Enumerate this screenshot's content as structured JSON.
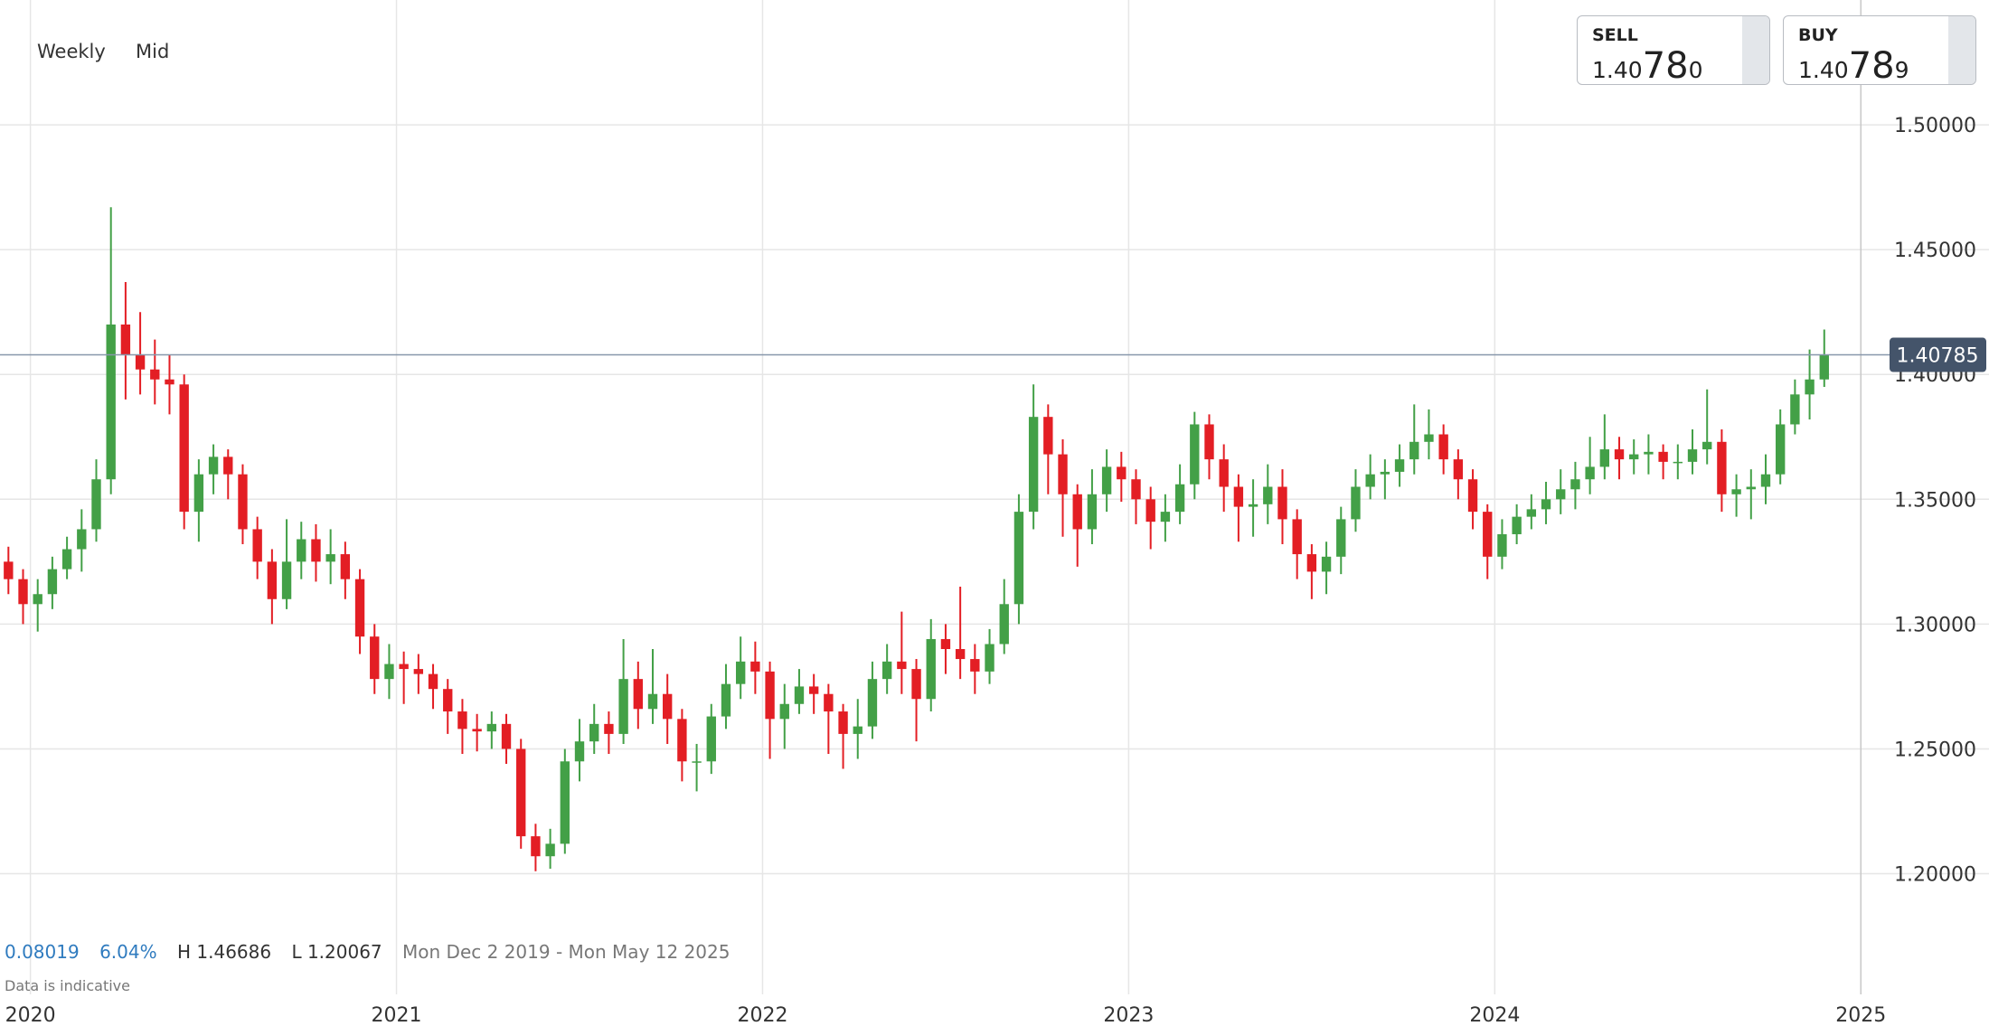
{
  "toolbar": {
    "interval": "Weekly",
    "price_type": "Mid"
  },
  "quotes": {
    "sell": {
      "label": "SELL",
      "prefix": "1.40",
      "big": "78",
      "suffix": "0"
    },
    "buy": {
      "label": "BUY",
      "prefix": "1.40",
      "big": "78",
      "suffix": "9"
    }
  },
  "stats": {
    "change": "0.08019",
    "change_pct": "6.04%",
    "high": "H 1.46686",
    "low": "L 1.20067",
    "range": "Mon Dec 2 2019 - Mon May 12 2025",
    "note": "Data is indicative"
  },
  "chart_data": {
    "type": "candlestick",
    "x": [
      2019.94,
      2019.98,
      2020.02,
      2020.06,
      2020.1,
      2020.14,
      2020.18,
      2020.22,
      2020.26,
      2020.3,
      2020.34,
      2020.38,
      2020.42,
      2020.46,
      2020.5,
      2020.54,
      2020.58,
      2020.62,
      2020.66,
      2020.7,
      2020.74,
      2020.78,
      2020.82,
      2020.86,
      2020.9,
      2020.94,
      2020.98,
      2021.02,
      2021.06,
      2021.1,
      2021.14,
      2021.18,
      2021.22,
      2021.26,
      2021.3,
      2021.34,
      2021.38,
      2021.42,
      2021.46,
      2021.5,
      2021.54,
      2021.58,
      2021.62,
      2021.66,
      2021.7,
      2021.74,
      2021.78,
      2021.82,
      2021.86,
      2021.9,
      2021.94,
      2021.98,
      2022.02,
      2022.06,
      2022.1,
      2022.14,
      2022.18,
      2022.22,
      2022.26,
      2022.3,
      2022.34,
      2022.38,
      2022.42,
      2022.46,
      2022.5,
      2022.54,
      2022.58,
      2022.62,
      2022.66,
      2022.7,
      2022.74,
      2022.78,
      2022.82,
      2022.86,
      2022.9,
      2022.94,
      2022.98,
      2023.02,
      2023.06,
      2023.1,
      2023.14,
      2023.18,
      2023.22,
      2023.26,
      2023.3,
      2023.34,
      2023.38,
      2023.42,
      2023.46,
      2023.5,
      2023.54,
      2023.58,
      2023.62,
      2023.66,
      2023.7,
      2023.74,
      2023.78,
      2023.82,
      2023.86,
      2023.9,
      2023.94,
      2023.98,
      2024.02,
      2024.06,
      2024.1,
      2024.14,
      2024.18,
      2024.22,
      2024.26,
      2024.3,
      2024.34,
      2024.38,
      2024.42,
      2024.46,
      2024.5,
      2024.54,
      2024.58,
      2024.62,
      2024.66,
      2024.7,
      2024.74,
      2024.78,
      2024.82,
      2024.86,
      2024.9
    ],
    "open": [
      1.325,
      1.318,
      1.308,
      1.312,
      1.322,
      1.33,
      1.338,
      1.358,
      1.42,
      1.408,
      1.402,
      1.398,
      1.396,
      1.345,
      1.36,
      1.367,
      1.36,
      1.338,
      1.325,
      1.31,
      1.325,
      1.334,
      1.325,
      1.328,
      1.318,
      1.295,
      1.278,
      1.284,
      1.282,
      1.28,
      1.274,
      1.265,
      1.258,
      1.257,
      1.26,
      1.25,
      1.215,
      1.207,
      1.212,
      1.245,
      1.253,
      1.26,
      1.256,
      1.278,
      1.266,
      1.272,
      1.262,
      1.245,
      1.245,
      1.263,
      1.276,
      1.285,
      1.281,
      1.262,
      1.268,
      1.275,
      1.272,
      1.265,
      1.256,
      1.259,
      1.278,
      1.285,
      1.282,
      1.27,
      1.294,
      1.29,
      1.286,
      1.281,
      1.292,
      1.308,
      1.345,
      1.383,
      1.368,
      1.352,
      1.338,
      1.352,
      1.363,
      1.358,
      1.35,
      1.341,
      1.345,
      1.356,
      1.38,
      1.366,
      1.355,
      1.347,
      1.348,
      1.355,
      1.342,
      1.328,
      1.321,
      1.327,
      1.342,
      1.355,
      1.36,
      1.361,
      1.366,
      1.373,
      1.376,
      1.366,
      1.358,
      1.345,
      1.327,
      1.336,
      1.343,
      1.346,
      1.35,
      1.354,
      1.358,
      1.363,
      1.37,
      1.366,
      1.368,
      1.369,
      1.365,
      1.365,
      1.37,
      1.373,
      1.352,
      1.354,
      1.355,
      1.36,
      1.38,
      1.392,
      1.398
    ],
    "high": [
      1.331,
      1.322,
      1.318,
      1.327,
      1.335,
      1.346,
      1.366,
      1.467,
      1.437,
      1.425,
      1.414,
      1.408,
      1.4,
      1.366,
      1.372,
      1.37,
      1.364,
      1.343,
      1.33,
      1.342,
      1.341,
      1.34,
      1.338,
      1.333,
      1.322,
      1.3,
      1.292,
      1.289,
      1.288,
      1.284,
      1.278,
      1.27,
      1.264,
      1.265,
      1.264,
      1.254,
      1.22,
      1.218,
      1.25,
      1.262,
      1.268,
      1.265,
      1.294,
      1.285,
      1.29,
      1.28,
      1.266,
      1.252,
      1.268,
      1.284,
      1.295,
      1.293,
      1.285,
      1.276,
      1.282,
      1.28,
      1.276,
      1.268,
      1.27,
      1.285,
      1.292,
      1.305,
      1.286,
      1.302,
      1.3,
      1.315,
      1.292,
      1.298,
      1.318,
      1.352,
      1.396,
      1.388,
      1.374,
      1.356,
      1.362,
      1.37,
      1.369,
      1.362,
      1.355,
      1.352,
      1.364,
      1.385,
      1.384,
      1.372,
      1.36,
      1.358,
      1.364,
      1.362,
      1.346,
      1.332,
      1.333,
      1.347,
      1.362,
      1.368,
      1.366,
      1.372,
      1.388,
      1.386,
      1.38,
      1.37,
      1.362,
      1.348,
      1.342,
      1.348,
      1.352,
      1.357,
      1.362,
      1.365,
      1.375,
      1.384,
      1.375,
      1.374,
      1.376,
      1.372,
      1.372,
      1.378,
      1.394,
      1.378,
      1.36,
      1.362,
      1.368,
      1.386,
      1.398,
      1.41,
      1.418
    ],
    "low": [
      1.312,
      1.3,
      1.297,
      1.306,
      1.318,
      1.321,
      1.333,
      1.352,
      1.39,
      1.392,
      1.388,
      1.384,
      1.338,
      1.333,
      1.352,
      1.35,
      1.332,
      1.318,
      1.3,
      1.306,
      1.318,
      1.317,
      1.316,
      1.31,
      1.288,
      1.272,
      1.27,
      1.268,
      1.272,
      1.266,
      1.256,
      1.248,
      1.249,
      1.25,
      1.244,
      1.21,
      1.201,
      1.202,
      1.208,
      1.237,
      1.248,
      1.248,
      1.252,
      1.258,
      1.26,
      1.252,
      1.237,
      1.233,
      1.24,
      1.258,
      1.27,
      1.272,
      1.246,
      1.25,
      1.264,
      1.264,
      1.248,
      1.242,
      1.246,
      1.254,
      1.272,
      1.272,
      1.253,
      1.265,
      1.28,
      1.278,
      1.272,
      1.276,
      1.288,
      1.3,
      1.338,
      1.352,
      1.335,
      1.323,
      1.332,
      1.345,
      1.349,
      1.34,
      1.33,
      1.333,
      1.34,
      1.35,
      1.358,
      1.345,
      1.333,
      1.335,
      1.34,
      1.332,
      1.318,
      1.31,
      1.312,
      1.32,
      1.337,
      1.35,
      1.35,
      1.355,
      1.36,
      1.366,
      1.36,
      1.35,
      1.338,
      1.318,
      1.322,
      1.332,
      1.338,
      1.34,
      1.344,
      1.346,
      1.352,
      1.358,
      1.358,
      1.36,
      1.36,
      1.358,
      1.358,
      1.36,
      1.364,
      1.345,
      1.343,
      1.342,
      1.348,
      1.356,
      1.376,
      1.382,
      1.395
    ],
    "close": [
      1.318,
      1.308,
      1.312,
      1.322,
      1.33,
      1.338,
      1.358,
      1.42,
      1.408,
      1.402,
      1.398,
      1.396,
      1.345,
      1.36,
      1.367,
      1.36,
      1.338,
      1.325,
      1.31,
      1.325,
      1.334,
      1.325,
      1.328,
      1.318,
      1.295,
      1.278,
      1.284,
      1.282,
      1.28,
      1.274,
      1.265,
      1.258,
      1.257,
      1.26,
      1.25,
      1.215,
      1.207,
      1.212,
      1.245,
      1.253,
      1.26,
      1.256,
      1.278,
      1.266,
      1.272,
      1.262,
      1.245,
      1.245,
      1.263,
      1.276,
      1.285,
      1.281,
      1.262,
      1.268,
      1.275,
      1.272,
      1.265,
      1.256,
      1.259,
      1.278,
      1.285,
      1.282,
      1.27,
      1.294,
      1.29,
      1.286,
      1.281,
      1.292,
      1.308,
      1.345,
      1.383,
      1.368,
      1.352,
      1.338,
      1.352,
      1.363,
      1.358,
      1.35,
      1.341,
      1.345,
      1.356,
      1.38,
      1.366,
      1.355,
      1.347,
      1.348,
      1.355,
      1.342,
      1.328,
      1.321,
      1.327,
      1.342,
      1.355,
      1.36,
      1.361,
      1.366,
      1.373,
      1.376,
      1.366,
      1.358,
      1.345,
      1.327,
      1.336,
      1.343,
      1.346,
      1.35,
      1.354,
      1.358,
      1.363,
      1.37,
      1.366,
      1.368,
      1.369,
      1.365,
      1.365,
      1.37,
      1.373,
      1.352,
      1.354,
      1.355,
      1.36,
      1.38,
      1.392,
      1.398,
      1.408
    ],
    "up_color": "#43a047",
    "down_color": "#e31e24",
    "current_price": 1.40785,
    "xlim": [
      2019.917,
      2025.35
    ],
    "xticks": [
      2020,
      2021,
      2022,
      2023,
      2024,
      2025
    ],
    "ylim": [
      1.139,
      1.55
    ],
    "yticks": [
      {
        "value": 1.2,
        "label": "1.20000"
      },
      {
        "value": 1.25,
        "label": "1.25000"
      },
      {
        "value": 1.3,
        "label": "1.30000"
      },
      {
        "value": 1.35,
        "label": "1.35000"
      },
      {
        "value": 1.4,
        "label": "1.40000"
      },
      {
        "value": 1.45,
        "label": "1.45000"
      },
      {
        "value": 1.5,
        "label": "1.50000"
      }
    ],
    "grid": true
  }
}
